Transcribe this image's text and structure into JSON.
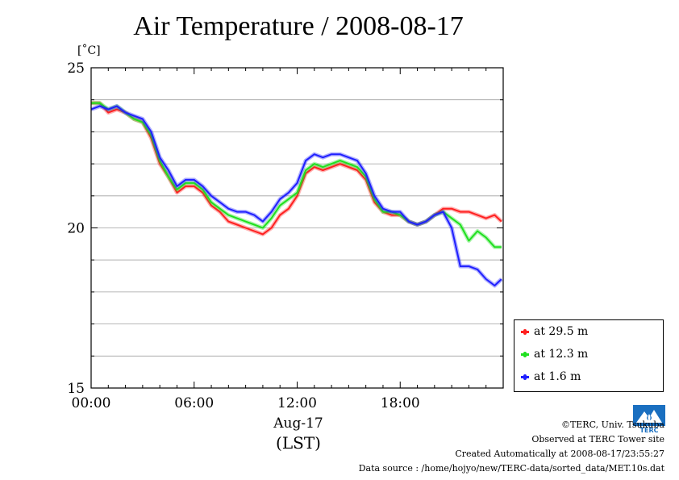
{
  "title": "Air Temperature / 2008-08-17",
  "unit_label": "[˚C]",
  "x_caption_date": "Aug-17",
  "x_caption_tz": "(LST)",
  "legend": [
    {
      "label": "at 29.5 m",
      "color": "#ff2020"
    },
    {
      "label": "at 12.3 m",
      "color": "#20e020"
    },
    {
      "label": "at 1.6 m",
      "color": "#2020ff"
    }
  ],
  "footer": {
    "copyright": "©TERC, Univ. Tsukuba",
    "observed": "Observed at TERC Tower site",
    "created": "Created Automatically at 2008-08-17/23:55:27",
    "source": "Data source : /home/hojyo/new/TERC-data/sorted_data/MET.10s.dat"
  },
  "logo_icon": "terc-logo-icon",
  "chart_data": {
    "type": "line",
    "title": "Air Temperature / 2008-08-17",
    "ylabel": "[˚C]",
    "xlabel": "Aug-17 (LST)",
    "xlim": [
      0,
      24
    ],
    "ylim": [
      15,
      25
    ],
    "x_ticks": [
      0,
      6,
      12,
      18
    ],
    "x_tick_labels": [
      "00:00",
      "06:00",
      "12:00",
      "18:00"
    ],
    "y_tick_labels": [
      "15",
      "20",
      "25"
    ],
    "y_ticks": [
      15,
      20,
      25
    ],
    "y_gridlines": [
      16,
      17,
      18,
      19,
      20,
      21,
      22,
      23,
      24
    ],
    "grid": "horizontal",
    "legend_position": "bottom-right outside",
    "x": [
      0,
      0.5,
      1,
      1.5,
      2,
      2.5,
      3,
      3.5,
      4,
      4.5,
      5,
      5.5,
      6,
      6.5,
      7,
      7.5,
      8,
      8.5,
      9,
      9.5,
      10,
      10.5,
      11,
      11.5,
      12,
      12.5,
      13,
      13.5,
      14,
      14.5,
      15,
      15.5,
      16,
      16.5,
      17,
      17.5,
      18,
      18.5,
      19,
      19.5,
      20,
      20.5,
      21,
      21.5,
      22,
      22.5,
      23,
      23.5,
      23.9
    ],
    "series": [
      {
        "name": "at 29.5 m",
        "color": "#ff2020",
        "values": [
          23.9,
          23.9,
          23.6,
          23.7,
          23.6,
          23.4,
          23.3,
          22.8,
          22.0,
          21.6,
          21.1,
          21.3,
          21.3,
          21.1,
          20.7,
          20.5,
          20.2,
          20.1,
          20.0,
          19.9,
          19.8,
          20.0,
          20.4,
          20.6,
          21.0,
          21.7,
          21.9,
          21.8,
          21.9,
          22.0,
          21.9,
          21.8,
          21.5,
          20.8,
          20.5,
          20.4,
          20.4,
          20.2,
          20.1,
          20.2,
          20.4,
          20.6,
          20.6,
          20.5,
          20.5,
          20.4,
          20.3,
          20.4,
          20.2
        ]
      },
      {
        "name": "at 12.3 m",
        "color": "#20e020",
        "values": [
          23.9,
          23.9,
          23.7,
          23.8,
          23.6,
          23.4,
          23.3,
          22.9,
          22.1,
          21.6,
          21.2,
          21.4,
          21.4,
          21.2,
          20.8,
          20.6,
          20.4,
          20.3,
          20.2,
          20.1,
          20.0,
          20.3,
          20.7,
          20.9,
          21.1,
          21.8,
          22.0,
          21.9,
          22.0,
          22.1,
          22.0,
          21.9,
          21.6,
          20.9,
          20.5,
          20.5,
          20.4,
          20.2,
          20.1,
          20.2,
          20.4,
          20.5,
          20.3,
          20.1,
          19.6,
          19.9,
          19.7,
          19.4,
          19.4
        ]
      },
      {
        "name": "at 1.6 m",
        "color": "#2020ff",
        "values": [
          23.7,
          23.8,
          23.7,
          23.8,
          23.6,
          23.5,
          23.4,
          23.0,
          22.2,
          21.8,
          21.3,
          21.5,
          21.5,
          21.3,
          21.0,
          20.8,
          20.6,
          20.5,
          20.5,
          20.4,
          20.2,
          20.5,
          20.9,
          21.1,
          21.4,
          22.1,
          22.3,
          22.2,
          22.3,
          22.3,
          22.2,
          22.1,
          21.7,
          21.0,
          20.6,
          20.5,
          20.5,
          20.2,
          20.1,
          20.2,
          20.4,
          20.5,
          20.0,
          18.8,
          18.8,
          18.7,
          18.4,
          18.2,
          18.4
        ]
      }
    ]
  }
}
